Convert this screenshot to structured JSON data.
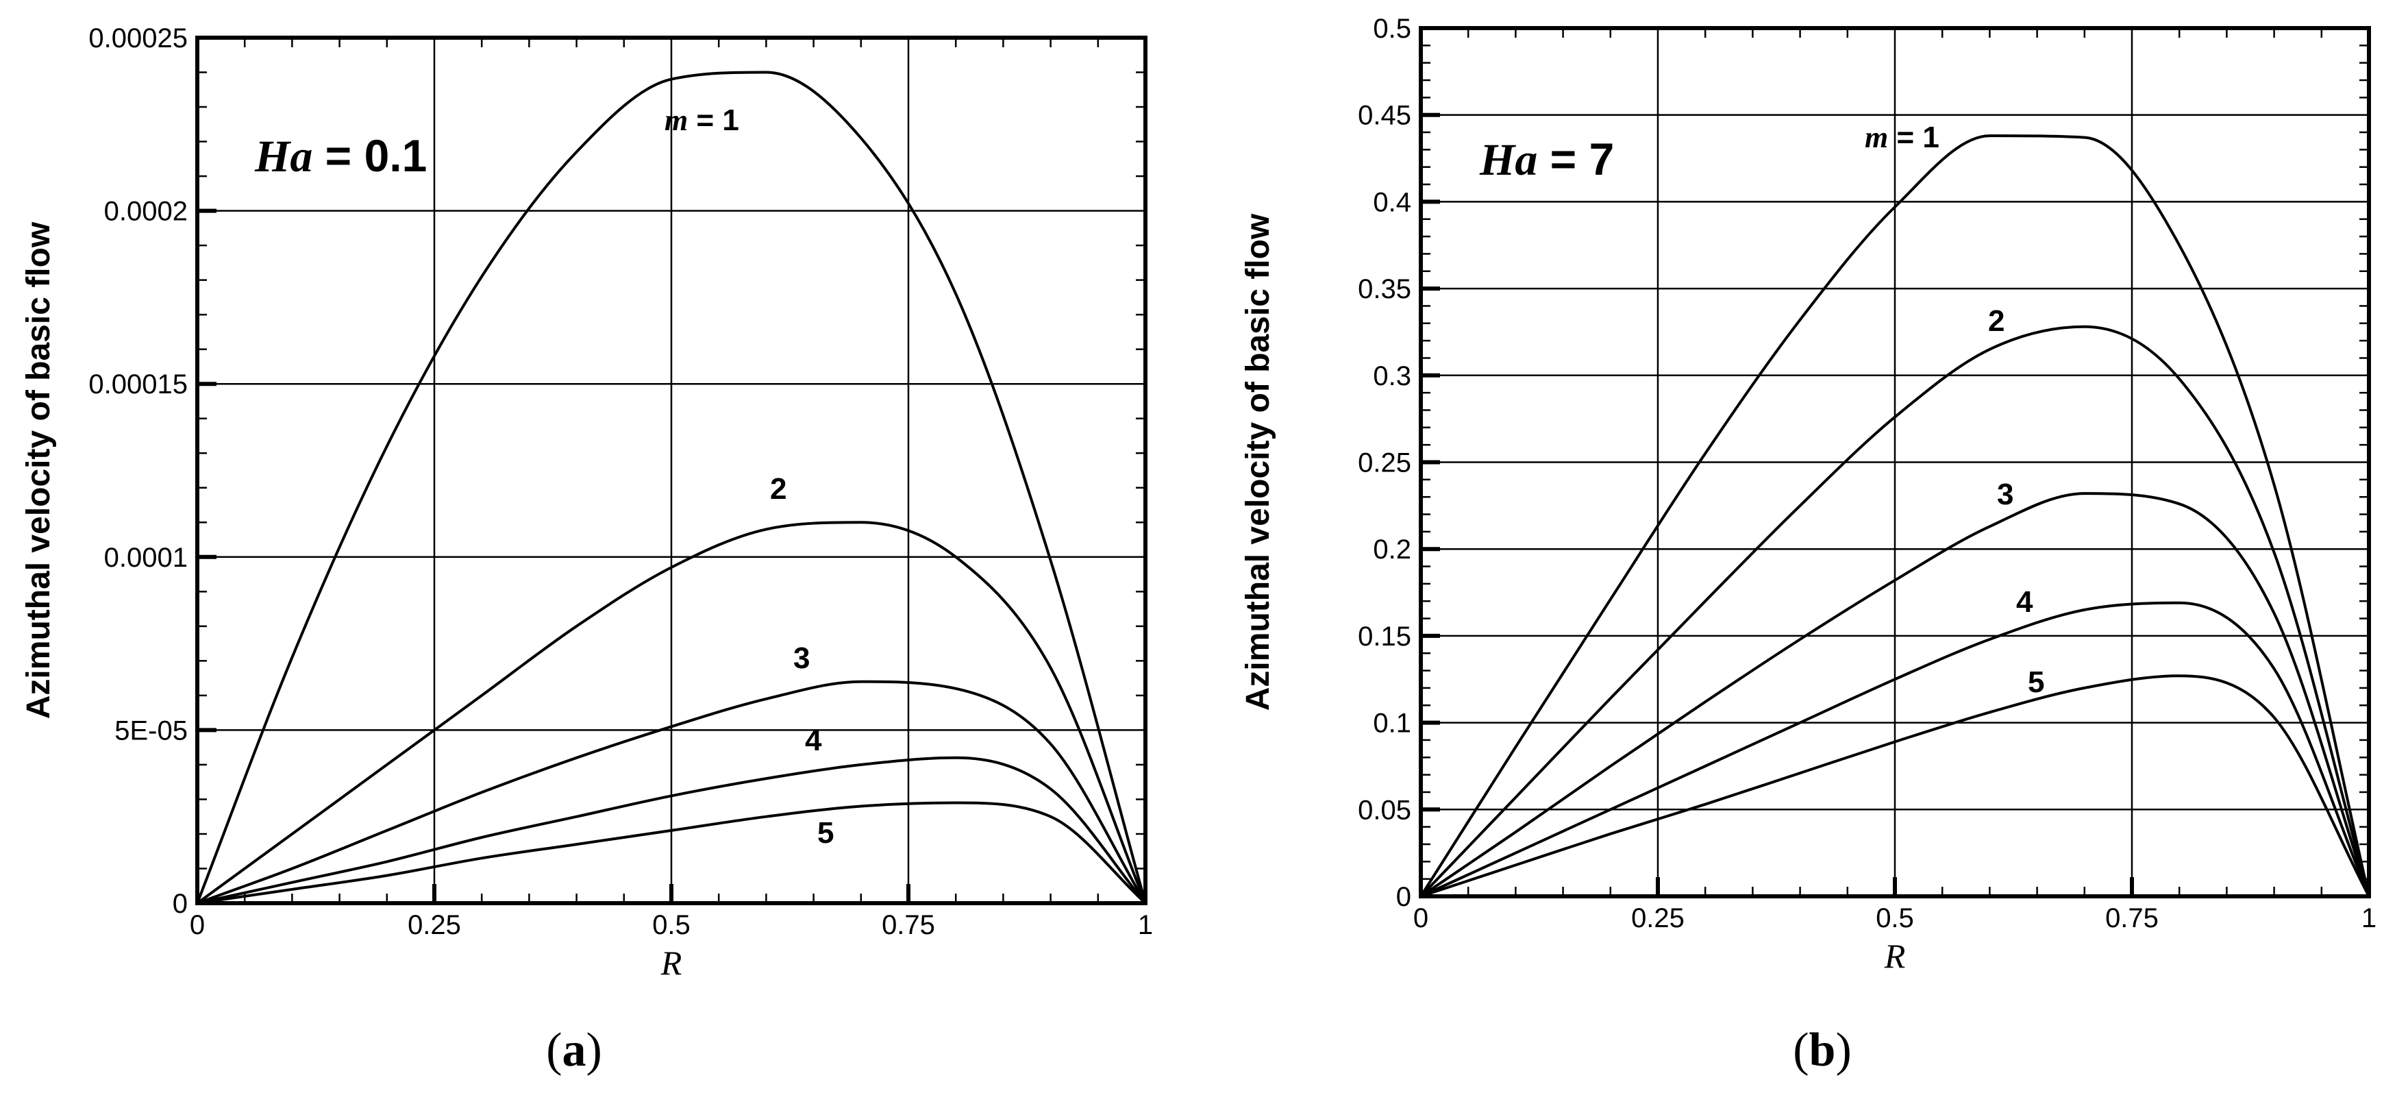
{
  "chart_data": [
    {
      "type": "line",
      "panel": "a",
      "caption_letter": "a",
      "param_name": "Ha",
      "param_value": "0.1",
      "xlabel": "R",
      "ylabel": "Azimuthal velocity of basic flow",
      "xlim": [
        0,
        1
      ],
      "ylim": [
        0,
        0.00025
      ],
      "x_ticks": [
        0,
        0.25,
        0.5,
        0.75,
        1
      ],
      "x_tick_labels": [
        "0",
        "0.25",
        "0.5",
        "0.75",
        "1"
      ],
      "y_ticks": [
        0,
        5e-05,
        0.0001,
        0.00015,
        0.0002,
        0.00025
      ],
      "y_tick_labels": [
        "0",
        "5E-05",
        "0.0001",
        "0.00015",
        "0.0002",
        "0.00025"
      ],
      "grid": true,
      "x": [
        0,
        0.1,
        0.2,
        0.3,
        0.4,
        0.5,
        0.6,
        0.7,
        0.8,
        0.9,
        1.0
      ],
      "series": [
        {
          "name": "1",
          "label": "1",
          "prefix": "m",
          "values": [
            0,
            7.1e-05,
            0.000132,
            0.000181,
            0.000217,
            0.000238,
            0.00024,
            0.000221,
            0.000176,
            9.9e-05,
            0
          ]
        },
        {
          "name": "2",
          "label": "2",
          "values": [
            0,
            2e-05,
            4e-05,
            6e-05,
            8e-05,
            9.7e-05,
            0.000108,
            0.00011,
            0.0001,
            6.8e-05,
            0
          ]
        },
        {
          "name": "3",
          "label": "3",
          "values": [
            0,
            1e-05,
            2.1e-05,
            3.2e-05,
            4.2e-05,
            5.1e-05,
            5.9e-05,
            6.4e-05,
            6.2e-05,
            4.6e-05,
            0
          ]
        },
        {
          "name": "4",
          "label": "4",
          "values": [
            0,
            6e-06,
            1.2e-05,
            1.9e-05,
            2.5e-05,
            3.1e-05,
            3.6e-05,
            4e-05,
            4.2e-05,
            3.3e-05,
            0
          ]
        },
        {
          "name": "5",
          "label": "5",
          "values": [
            0,
            4e-06,
            8e-06,
            1.3e-05,
            1.7e-05,
            2.1e-05,
            2.5e-05,
            2.8e-05,
            2.9e-05,
            2.5e-05,
            0
          ]
        }
      ]
    },
    {
      "type": "line",
      "panel": "b",
      "caption_letter": "b",
      "param_name": "Ha",
      "param_value": "7",
      "xlabel": "R",
      "ylabel": "Azimuthal velocity of basic flow",
      "xlim": [
        0,
        1
      ],
      "ylim": [
        0,
        0.5
      ],
      "x_ticks": [
        0,
        0.25,
        0.5,
        0.75,
        1
      ],
      "x_tick_labels": [
        "0",
        "0.25",
        "0.5",
        "0.75",
        "1"
      ],
      "y_ticks": [
        0,
        0.05,
        0.1,
        0.15,
        0.2,
        0.25,
        0.3,
        0.35,
        0.4,
        0.45,
        0.5
      ],
      "y_tick_labels": [
        "0",
        "0.05",
        "0.1",
        "0.15",
        "0.2",
        "0.25",
        "0.3",
        "0.35",
        "0.4",
        "0.45",
        "0.5"
      ],
      "grid": true,
      "x": [
        0,
        0.1,
        0.2,
        0.3,
        0.4,
        0.5,
        0.6,
        0.7,
        0.8,
        0.9,
        1.0
      ],
      "series": [
        {
          "name": "1",
          "label": "1",
          "prefix": "m",
          "values": [
            0,
            0.086,
            0.171,
            0.255,
            0.332,
            0.397,
            0.438,
            0.437,
            0.375,
            0.237,
            0
          ]
        },
        {
          "name": "2",
          "label": "2",
          "values": [
            0,
            0.057,
            0.114,
            0.17,
            0.225,
            0.276,
            0.315,
            0.328,
            0.298,
            0.198,
            0
          ]
        },
        {
          "name": "3",
          "label": "3",
          "values": [
            0,
            0.037,
            0.075,
            0.112,
            0.148,
            0.182,
            0.213,
            0.232,
            0.226,
            0.163,
            0
          ]
        },
        {
          "name": "4",
          "label": "4",
          "values": [
            0,
            0.025,
            0.05,
            0.075,
            0.1,
            0.125,
            0.148,
            0.165,
            0.169,
            0.131,
            0
          ]
        },
        {
          "name": "5",
          "label": "5",
          "values": [
            0,
            0.018,
            0.036,
            0.053,
            0.071,
            0.089,
            0.106,
            0.12,
            0.127,
            0.103,
            0
          ]
        }
      ]
    }
  ],
  "colors": {
    "line": "#000000",
    "grid": "#000000",
    "background": "#ffffff"
  }
}
